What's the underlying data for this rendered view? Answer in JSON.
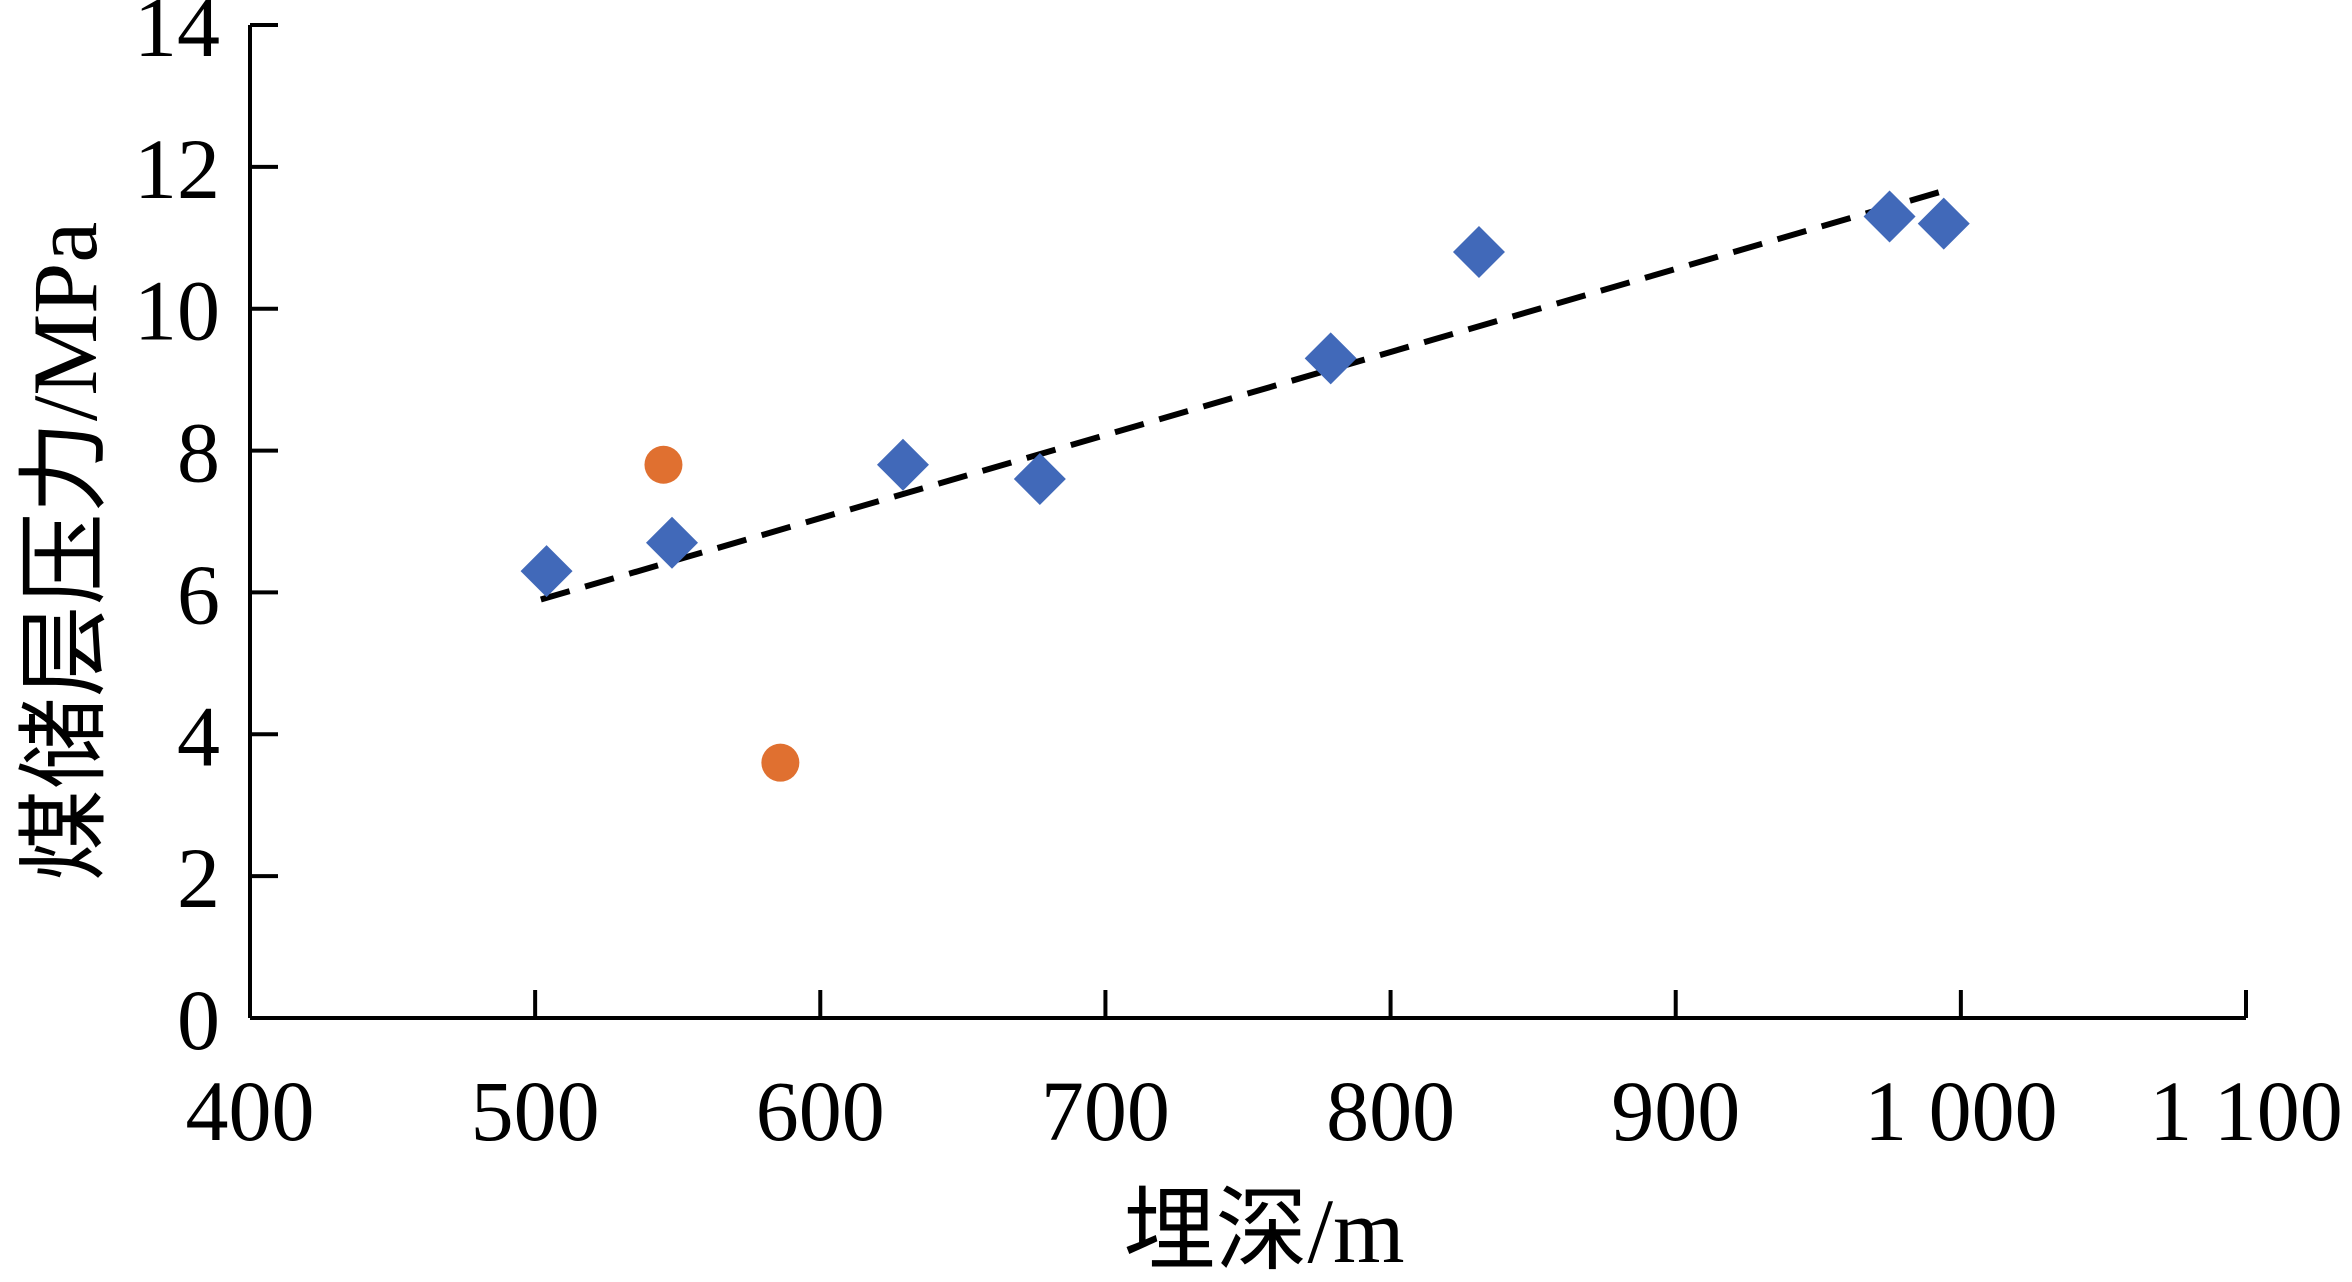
{
  "chart_data": {
    "type": "scatter",
    "title": "",
    "xlabel": "埋深/m",
    "ylabel": "煤储层压力/MPa",
    "xlim": [
      400,
      1100
    ],
    "ylim": [
      0,
      14
    ],
    "x_ticks": [
      400,
      500,
      600,
      700,
      800,
      900,
      1000,
      1100
    ],
    "x_tick_labels": [
      "400",
      "500",
      "600",
      "700",
      "800",
      "900",
      "1 000",
      "1 100"
    ],
    "y_ticks": [
      0,
      2,
      4,
      6,
      8,
      10,
      12,
      14
    ],
    "y_tick_labels": [
      "0",
      "2",
      "4",
      "6",
      "8",
      "10",
      "12",
      "14"
    ],
    "grid": false,
    "legend": "none",
    "series": [
      {
        "marker": "diamond",
        "color": "#4169B9",
        "x": [
          504,
          548,
          629,
          677,
          779,
          831,
          975,
          994
        ],
        "y": [
          6.3,
          6.7,
          7.8,
          7.6,
          9.3,
          10.8,
          11.3,
          11.2
        ]
      },
      {
        "marker": "circle",
        "color": "#E07030",
        "x": [
          545,
          586
        ],
        "y": [
          7.8,
          3.6
        ]
      }
    ],
    "trendline": {
      "style": "dashed",
      "color": "#000000",
      "x": [
        502,
        993
      ],
      "y": [
        5.9,
        11.65
      ]
    }
  }
}
